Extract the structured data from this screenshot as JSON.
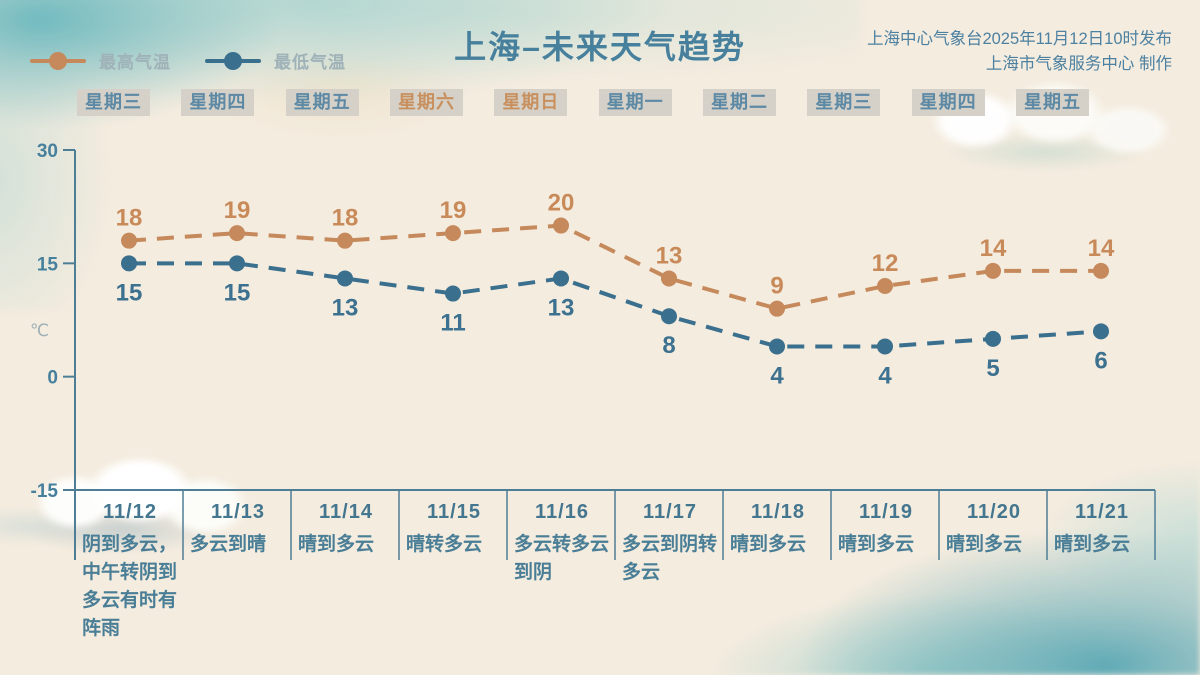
{
  "header": {
    "title": "上海–未来天气趋势",
    "source_line1": "上海中心气象台2025年11月12日10时发布",
    "source_line2": "上海市气象服务中心 制作",
    "legend": [
      {
        "label": "最高气温",
        "key": "high-temp",
        "color": "#c5895c"
      },
      {
        "label": "最低气温",
        "key": "low-temp",
        "color": "#3a6f8e"
      }
    ]
  },
  "weekday_row": {
    "days": [
      {
        "label": "星期三",
        "weekend": false
      },
      {
        "label": "星期四",
        "weekend": false
      },
      {
        "label": "星期五",
        "weekend": false
      },
      {
        "label": "星期六",
        "weekend": true
      },
      {
        "label": "星期日",
        "weekend": true
      },
      {
        "label": "星期一",
        "weekend": false
      },
      {
        "label": "星期二",
        "weekend": false
      },
      {
        "label": "星期三",
        "weekend": false
      },
      {
        "label": "星期四",
        "weekend": false
      },
      {
        "label": "星期五",
        "weekend": false
      }
    ],
    "weekday_color": "#5d89a5",
    "weekend_color": "#c8905e"
  },
  "chart_data": {
    "type": "line",
    "title": "上海–未来天气趋势",
    "x": [
      "11/12",
      "11/13",
      "11/14",
      "11/15",
      "11/16",
      "11/17",
      "11/18",
      "11/19",
      "11/20",
      "11/21"
    ],
    "series": [
      {
        "name": "最高气温",
        "key": "high-temp",
        "color": "#c5895c",
        "label_color": "#c98a5a",
        "values": [
          18,
          19,
          18,
          19,
          20,
          13,
          9,
          12,
          14,
          14
        ]
      },
      {
        "name": "最低气温",
        "key": "low-temp",
        "color": "#3a6f8e",
        "label_color": "#3d7190",
        "values": [
          15,
          15,
          13,
          11,
          13,
          8,
          4,
          4,
          5,
          6
        ]
      }
    ],
    "ylabel": "℃",
    "yticks": [
      30,
      15,
      0,
      -15
    ],
    "ylim": [
      -15,
      30
    ],
    "grid": false,
    "line_style": "dashed",
    "legend_position": "top-left",
    "axis_color": "#4e7e96"
  },
  "footer": {
    "columns": [
      {
        "date": "11/12",
        "weather": "阴到多云，中午转阴到多云有时有阵雨"
      },
      {
        "date": "11/13",
        "weather": "多云到晴"
      },
      {
        "date": "11/14",
        "weather": "晴到多云"
      },
      {
        "date": "11/15",
        "weather": "晴转多云"
      },
      {
        "date": "11/16",
        "weather": "多云转多云到阴"
      },
      {
        "date": "11/17",
        "weather": "多云到阴转多云"
      },
      {
        "date": "11/18",
        "weather": "晴到多云"
      },
      {
        "date": "11/19",
        "weather": "晴到多云"
      },
      {
        "date": "11/20",
        "weather": "晴到多云"
      },
      {
        "date": "11/21",
        "weather": "晴到多云"
      }
    ]
  }
}
